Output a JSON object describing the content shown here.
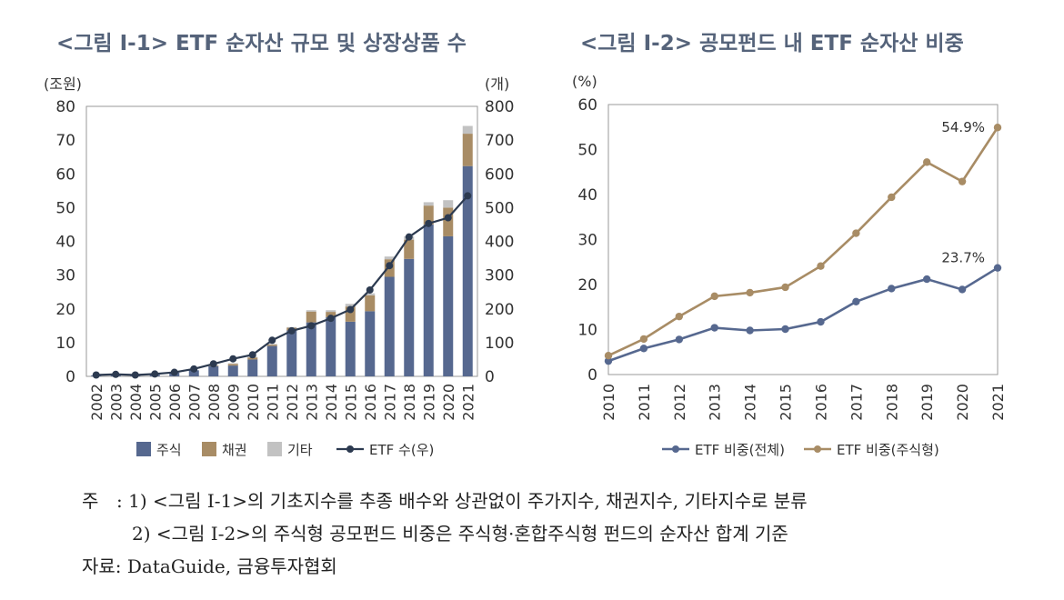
{
  "chart_data": [
    {
      "type": "bar",
      "stacked": true,
      "title": "<그림  Ⅰ-1> ETF 순자산 규모 및 상장상품 수",
      "ylabel_left": "(조원)",
      "ylabel_right": "(개)",
      "ylim_left": [
        0,
        80
      ],
      "ylim_right": [
        0,
        800
      ],
      "yticks_left": [
        "0",
        "10",
        "20",
        "30",
        "40",
        "50",
        "60",
        "70",
        "80"
      ],
      "yticks_right": [
        "0",
        "100",
        "200",
        "300",
        "400",
        "500",
        "600",
        "700",
        "800"
      ],
      "categories": [
        "2002",
        "2003",
        "2004",
        "2005",
        "2006",
        "2007",
        "2008",
        "2009",
        "2010",
        "2011",
        "2012",
        "2013",
        "2014",
        "2015",
        "2016",
        "2017",
        "2018",
        "2019",
        "2020",
        "2021"
      ],
      "series": [
        {
          "name": "주식",
          "kind": "bar",
          "axis": "left",
          "color": "#56688f",
          "values": [
            0.3,
            0.4,
            0.3,
            0.5,
            1.1,
            1.8,
            3.0,
            3.2,
            5.0,
            9.0,
            13.6,
            16.0,
            17.5,
            16.2,
            19.3,
            29.5,
            34.8,
            45.0,
            41.5,
            62.3
          ]
        },
        {
          "name": "채권",
          "kind": "bar",
          "axis": "left",
          "color": "#a88c65",
          "values": [
            0,
            0,
            0,
            0,
            0,
            0,
            0.2,
            0.5,
            0.6,
            0.4,
            0.8,
            3.2,
            1.6,
            4.5,
            4.7,
            5.2,
            5.7,
            5.6,
            8.5,
            9.6
          ]
        },
        {
          "name": "기타",
          "kind": "bar",
          "axis": "left",
          "color": "#c2c2c2",
          "values": [
            0,
            0,
            0,
            0,
            0,
            0,
            0.1,
            0.2,
            0.2,
            0.2,
            0.2,
            0.4,
            0.5,
            0.8,
            0.6,
            0.8,
            1.0,
            1.0,
            2.2,
            2.3
          ]
        },
        {
          "name": "ETF 수(우)",
          "kind": "line",
          "axis": "right",
          "color": "#2c3a50",
          "values": [
            4,
            6,
            4,
            7,
            12,
            22,
            37,
            52,
            64,
            107,
            135,
            150,
            172,
            198,
            256,
            328,
            413,
            453,
            470,
            535
          ]
        }
      ]
    },
    {
      "type": "line",
      "title": "<그림  Ⅰ-2> 공모펀드 내 ETF 순자산 비중",
      "ylabel": "(%)",
      "ylim": [
        0,
        60
      ],
      "yticks": [
        "0",
        "10",
        "20",
        "30",
        "40",
        "50",
        "60"
      ],
      "categories": [
        "2010",
        "2011",
        "2012",
        "2013",
        "2014",
        "2015",
        "2016",
        "2017",
        "2018",
        "2019",
        "2020",
        "2021"
      ],
      "series": [
        {
          "name": "ETF 비중(전체)",
          "color": "#56688f",
          "values": [
            3.0,
            5.8,
            7.8,
            10.4,
            9.8,
            10.1,
            11.7,
            16.2,
            19.1,
            21.2,
            18.9,
            23.7
          ]
        },
        {
          "name": "ETF 비중(주식형)",
          "color": "#a88c65",
          "values": [
            4.2,
            7.9,
            12.9,
            17.4,
            18.2,
            19.4,
            24.1,
            31.4,
            39.4,
            47.2,
            42.9,
            54.9
          ]
        }
      ],
      "annotations": [
        "54.9%",
        "23.7%"
      ]
    }
  ],
  "notes": {
    "line1_label": "주",
    "line1_text": ": 1) <그림  Ⅰ-1>의 기초지수를 추종 배수와 상관없이 주가지수, 채권지수, 기타지수로 분류",
    "line2_text": "2) <그림  Ⅰ-2>의 주식형 공모펀드 비중은 주식형·혼합주식형 펀드의 순자산 합계 기준",
    "source": "자료: DataGuide, 금융투자협회"
  }
}
